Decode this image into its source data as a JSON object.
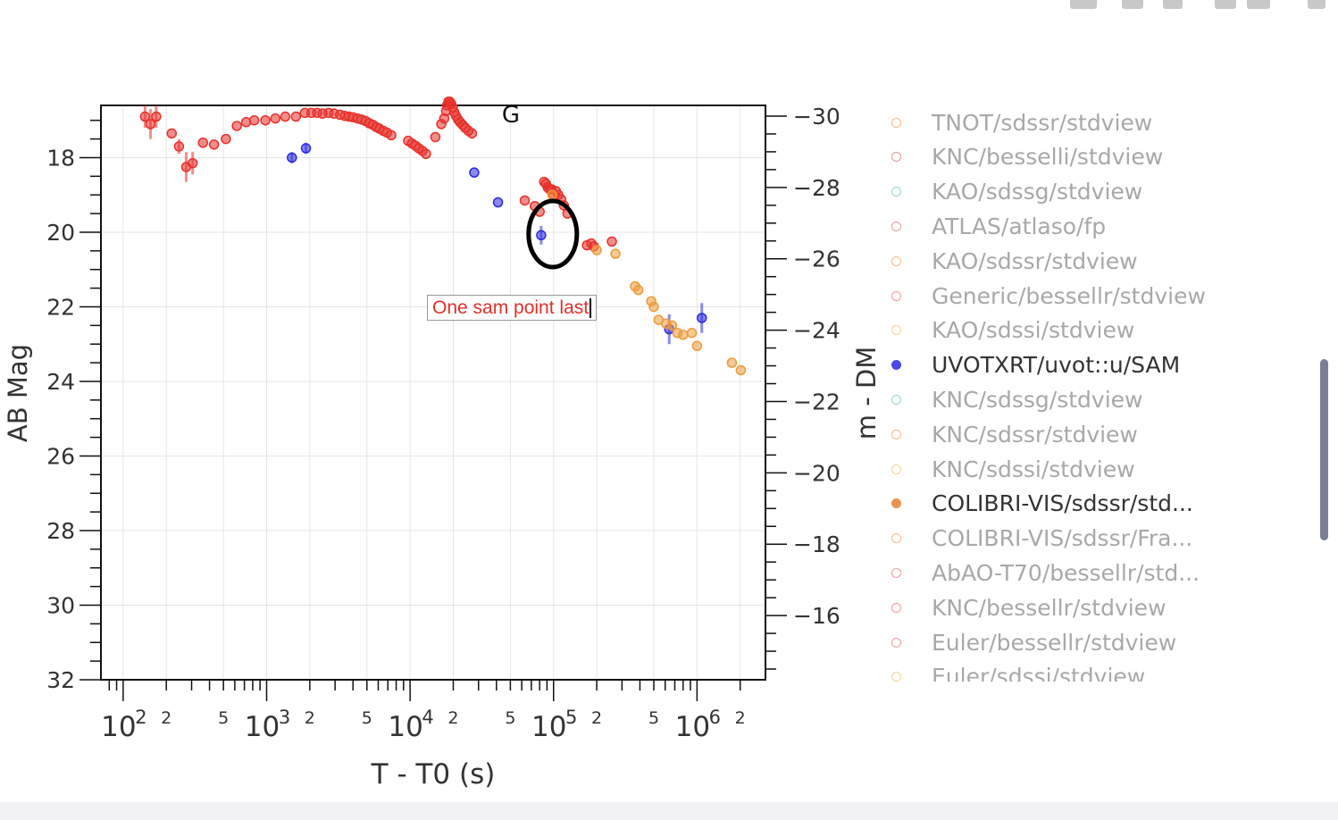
{
  "modebar": {
    "icons": [
      "camera-icon",
      "zoom-icon",
      "pan-icon",
      "zoom-in-icon",
      "zoom-out-icon",
      "home-icon"
    ]
  },
  "chart_data": {
    "type": "scatter",
    "title": "",
    "xlabel": "T - T0 (s)",
    "ylabel": "AB Mag",
    "y2label": "m - DM",
    "xscale": "log",
    "xlim": [
      70,
      3000000
    ],
    "ylim": [
      32,
      16.6
    ],
    "y2lim": [
      -14.2,
      -30.3
    ],
    "y2_ticks": [
      -30,
      -28,
      -26,
      -24,
      -22,
      -20,
      -18,
      -16
    ],
    "y_ticks": [
      18,
      20,
      22,
      24,
      26,
      28,
      30,
      32
    ],
    "x_major_ticks": [
      {
        "base": "10",
        "exp": "2",
        "value": 100
      },
      {
        "base": "10",
        "exp": "3",
        "value": 1000
      },
      {
        "base": "10",
        "exp": "4",
        "value": 10000
      },
      {
        "base": "10",
        "exp": "5",
        "value": 100000
      },
      {
        "base": "10",
        "exp": "6",
        "value": 1000000
      }
    ],
    "x_minor_labels": [
      {
        "label": "2",
        "value": 200
      },
      {
        "label": "5",
        "value": 500
      },
      {
        "label": "2",
        "value": 2000
      },
      {
        "label": "5",
        "value": 5000
      },
      {
        "label": "2",
        "value": 20000
      },
      {
        "label": "5",
        "value": 50000
      },
      {
        "label": "2",
        "value": 200000
      },
      {
        "label": "5",
        "value": 500000
      },
      {
        "label": "2",
        "value": 2000000
      }
    ],
    "grid": true,
    "legend_position": "right",
    "annotation_g": {
      "text": "G",
      "x": 69000,
      "y": 16.9
    },
    "annotation_box": {
      "text": "One sam point last",
      "x": 60000,
      "y": 21.8
    },
    "highlight_ellipse": {
      "x": 88000,
      "y": 20.05
    },
    "series": [
      {
        "color": "#e8302a",
        "points": [
          [
            142,
            16.9,
            0.3
          ],
          [
            155,
            17.1,
            0.4
          ],
          [
            170,
            16.9,
            0.3
          ],
          [
            218,
            17.35,
            0
          ],
          [
            245,
            17.7,
            0.2
          ],
          [
            275,
            18.25,
            0.4
          ],
          [
            305,
            18.15,
            0.3
          ],
          [
            360,
            17.6,
            0
          ],
          [
            430,
            17.65,
            0
          ],
          [
            520,
            17.5,
            0
          ],
          [
            620,
            17.15,
            0
          ],
          [
            720,
            17.05,
            0
          ],
          [
            820,
            17.0,
            0
          ],
          [
            980,
            17.0,
            0
          ],
          [
            1150,
            16.95,
            0
          ],
          [
            1350,
            16.9,
            0
          ],
          [
            1600,
            16.9,
            0
          ],
          [
            1850,
            16.8,
            0
          ],
          [
            2050,
            16.8,
            0
          ],
          [
            2250,
            16.8,
            0
          ],
          [
            2450,
            16.82,
            0
          ],
          [
            2700,
            16.8,
            0
          ],
          [
            2950,
            16.82,
            0
          ],
          [
            3250,
            16.85,
            0
          ],
          [
            3500,
            16.88,
            0
          ],
          [
            3750,
            16.9,
            0
          ],
          [
            4000,
            16.92,
            0
          ],
          [
            4300,
            16.95,
            0
          ],
          [
            4600,
            16.98,
            0
          ],
          [
            4900,
            17.02,
            0
          ],
          [
            5200,
            17.08,
            0
          ],
          [
            5500,
            17.12,
            0
          ],
          [
            5800,
            17.18,
            0
          ],
          [
            6100,
            17.22,
            0
          ],
          [
            6500,
            17.28,
            0
          ],
          [
            6900,
            17.33,
            0
          ],
          [
            7400,
            17.4,
            0
          ],
          [
            9700,
            17.55,
            0
          ],
          [
            10300,
            17.62,
            0
          ],
          [
            10900,
            17.68,
            0
          ],
          [
            11500,
            17.75,
            0
          ],
          [
            12200,
            17.82,
            0
          ],
          [
            12900,
            17.9,
            0
          ],
          [
            15000,
            17.45,
            0
          ],
          [
            16500,
            17.1,
            0
          ],
          [
            17300,
            16.95,
            0
          ],
          [
            17800,
            16.75,
            0
          ],
          [
            18100,
            16.6,
            0
          ],
          [
            18500,
            16.5,
            0
          ],
          [
            18900,
            16.5,
            0
          ],
          [
            19300,
            16.55,
            0
          ],
          [
            19800,
            16.65,
            0
          ],
          [
            20300,
            16.78,
            0
          ],
          [
            20900,
            16.88,
            0
          ],
          [
            21600,
            16.98,
            0
          ],
          [
            22300,
            17.05,
            0
          ],
          [
            23200,
            17.12,
            0
          ],
          [
            24200,
            17.2,
            0
          ],
          [
            25500,
            17.28,
            0
          ],
          [
            27000,
            17.35,
            0
          ],
          [
            63000,
            19.15,
            0
          ],
          [
            74000,
            19.3,
            0
          ],
          [
            80000,
            19.45,
            0
          ],
          [
            86000,
            18.65,
            0
          ],
          [
            88500,
            18.7,
            0
          ],
          [
            91000,
            18.8,
            0
          ],
          [
            94000,
            18.85,
            0
          ],
          [
            97000,
            18.85,
            0
          ],
          [
            100500,
            19.0,
            0
          ],
          [
            104000,
            18.9,
            0
          ],
          [
            108000,
            19.0,
            0
          ],
          [
            113000,
            19.12,
            0
          ],
          [
            118000,
            19.28,
            0
          ],
          [
            125000,
            19.5,
            0
          ],
          [
            171000,
            20.35,
            0
          ],
          [
            183000,
            20.3,
            0
          ],
          [
            191000,
            20.38,
            0
          ],
          [
            255000,
            20.25,
            0
          ]
        ]
      },
      {
        "color": "#2a2ae0",
        "points": [
          [
            1500,
            18.0,
            0.15
          ],
          [
            1880,
            17.75,
            0.15
          ],
          [
            28000,
            18.4,
            0
          ],
          [
            41000,
            19.2,
            0
          ],
          [
            82000,
            20.08,
            0.25
          ],
          [
            640000,
            22.6,
            0.4
          ],
          [
            1080000,
            22.3,
            0.4
          ]
        ]
      },
      {
        "color": "#ef9a3a",
        "points": [
          [
            98000,
            19.0,
            0
          ],
          [
            200000,
            20.48,
            0
          ],
          [
            270000,
            20.58,
            0
          ],
          [
            370000,
            21.45,
            0
          ],
          [
            390000,
            21.55,
            0
          ],
          [
            480000,
            21.85,
            0
          ],
          [
            500000,
            22.0,
            0
          ],
          [
            540000,
            22.35,
            0
          ],
          [
            610000,
            22.45,
            0
          ],
          [
            670000,
            22.5,
            0
          ],
          [
            730000,
            22.7,
            0
          ],
          [
            800000,
            22.75,
            0
          ],
          [
            920000,
            22.7,
            0
          ],
          [
            1000000,
            23.05,
            0
          ],
          [
            1750000,
            23.5,
            0
          ],
          [
            2020000,
            23.7,
            0
          ]
        ]
      }
    ],
    "legend": [
      {
        "label": "TNOT/sdssr/stdview",
        "color": "#f0a868",
        "active": false
      },
      {
        "label": "KNC/besselli/stdview",
        "color": "#d08080",
        "active": false
      },
      {
        "label": "KAO/sdssg/stdview",
        "color": "#70d0b0",
        "active": false
      },
      {
        "label": "ATLAS/atlaso/fp",
        "color": "#e08080",
        "active": false
      },
      {
        "label": "KAO/sdssr/stdview",
        "color": "#f0a868",
        "active": false
      },
      {
        "label": "Generic/bessellr/stdview",
        "color": "#e88080",
        "active": false
      },
      {
        "label": "KAO/sdssi/stdview",
        "color": "#f5c870",
        "active": false
      },
      {
        "label": "UVOTXRT/uvot::u/SAM",
        "color": "#2a2ae0",
        "active": true
      },
      {
        "label": "KNC/sdssg/stdview",
        "color": "#70d0b0",
        "active": false
      },
      {
        "label": "KNC/sdssr/stdview",
        "color": "#f0a868",
        "active": false
      },
      {
        "label": "KNC/sdssi/stdview",
        "color": "#f5c870",
        "active": false
      },
      {
        "label": "COLIBRI-VIS/sdssr/std...",
        "color": "#e88030",
        "active": true
      },
      {
        "label": "COLIBRI-VIS/sdssr/Fra...",
        "color": "#f0a868",
        "active": false
      },
      {
        "label": "AbAO-T70/bessellr/std...",
        "color": "#e88080",
        "active": false
      },
      {
        "label": "KNC/bessellr/stdview",
        "color": "#e88080",
        "active": false
      },
      {
        "label": "Euler/bessellr/stdview",
        "color": "#e88080",
        "active": false
      },
      {
        "label": "Euler/sdssi/stdview",
        "color": "#f5c870",
        "active": false
      }
    ]
  }
}
